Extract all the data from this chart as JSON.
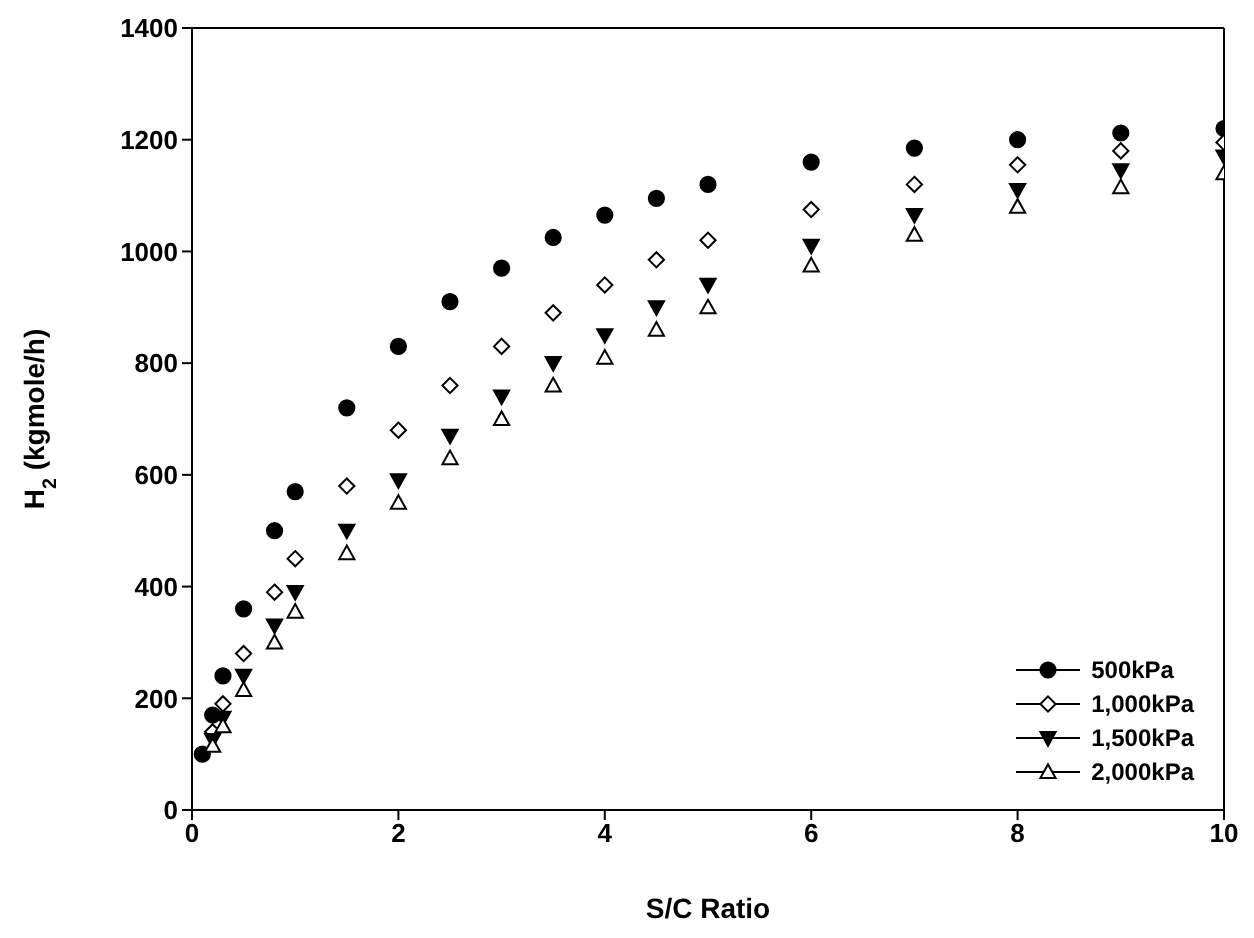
{
  "chart_data": {
    "type": "scatter",
    "xlabel": "S/C Ratio",
    "ylabel": "H$_{2}$ (kgmole/h)",
    "x": [
      0.2,
      0.3,
      0.5,
      0.8,
      1,
      1.5,
      2,
      2.5,
      3,
      3.5,
      4,
      4.5,
      5,
      6,
      7,
      8,
      9,
      10
    ],
    "series": [
      {
        "name": "500kPa",
        "color": "#000000",
        "marker": "circle",
        "x": [
          0.1,
          0.2,
          0.3,
          0.5,
          0.8,
          1,
          1.5,
          2,
          2.5,
          3,
          3.5,
          4,
          4.5,
          5,
          6,
          7,
          8,
          9,
          10
        ],
        "values": [
          100,
          170,
          240,
          360,
          500,
          570,
          720,
          830,
          910,
          970,
          1025,
          1065,
          1095,
          1120,
          1160,
          1185,
          1200,
          1212,
          1220
        ]
      },
      {
        "name": "1,000kPa",
        "color": "#000000",
        "marker": "diamond",
        "values": [
          140,
          190,
          280,
          390,
          450,
          580,
          680,
          760,
          830,
          890,
          940,
          985,
          1020,
          1075,
          1120,
          1155,
          1180,
          1195
        ]
      },
      {
        "name": "1,500kPa",
        "color": "#000000",
        "marker": "triangle",
        "values": [
          125,
          165,
          240,
          330,
          390,
          500,
          590,
          670,
          740,
          800,
          850,
          900,
          940,
          1010,
          1065,
          1110,
          1145,
          1170
        ]
      },
      {
        "name": "2,000kPa",
        "color": "#000000",
        "marker": "triangle",
        "values": [
          115,
          150,
          215,
          300,
          355,
          460,
          550,
          630,
          700,
          760,
          810,
          860,
          900,
          975,
          1030,
          1080,
          1115,
          1140
        ]
      }
    ],
    "xlim": [
      0,
      10
    ],
    "xticks": [
      0,
      2,
      4,
      6,
      8,
      10
    ],
    "ylim": [
      0,
      1400
    ],
    "yticks": [
      0,
      200,
      400,
      600,
      800,
      1000,
      1200,
      1400
    ],
    "legend": "bottom right"
  }
}
